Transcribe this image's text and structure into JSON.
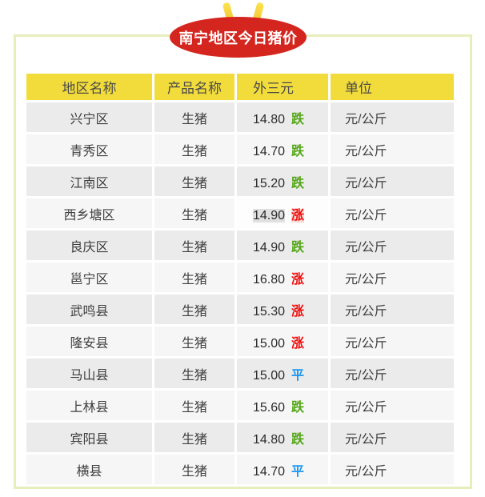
{
  "badge": {
    "title": "南宁地区今日猪价"
  },
  "table": {
    "headers": {
      "region": "地区名称",
      "product": "产品名称",
      "price": "外三元",
      "unit": "单位"
    },
    "rows": [
      {
        "region": "兴宁区",
        "product": "生猪",
        "price": "14.80",
        "trend": "跌",
        "trend_dir": "down",
        "unit": "元/公斤",
        "highlighted": false
      },
      {
        "region": "青秀区",
        "product": "生猪",
        "price": "14.70",
        "trend": "跌",
        "trend_dir": "down",
        "unit": "元/公斤",
        "highlighted": false
      },
      {
        "region": "江南区",
        "product": "生猪",
        "price": "15.20",
        "trend": "跌",
        "trend_dir": "down",
        "unit": "元/公斤",
        "highlighted": false
      },
      {
        "region": "西乡塘区",
        "product": "生猪",
        "price": "14.90",
        "trend": "涨",
        "trend_dir": "up",
        "unit": "元/公斤",
        "highlighted": true
      },
      {
        "region": "良庆区",
        "product": "生猪",
        "price": "14.90",
        "trend": "跌",
        "trend_dir": "down",
        "unit": "元/公斤",
        "highlighted": false
      },
      {
        "region": "邕宁区",
        "product": "生猪",
        "price": "16.80",
        "trend": "涨",
        "trend_dir": "up",
        "unit": "元/公斤",
        "highlighted": false
      },
      {
        "region": "武鸣县",
        "product": "生猪",
        "price": "15.30",
        "trend": "涨",
        "trend_dir": "up",
        "unit": "元/公斤",
        "highlighted": false
      },
      {
        "region": "隆安县",
        "product": "生猪",
        "price": "15.00",
        "trend": "涨",
        "trend_dir": "up",
        "unit": "元/公斤",
        "highlighted": false
      },
      {
        "region": "马山县",
        "product": "生猪",
        "price": "15.00",
        "trend": "平",
        "trend_dir": "flat",
        "unit": "元/公斤",
        "highlighted": false
      },
      {
        "region": "上林县",
        "product": "生猪",
        "price": "15.60",
        "trend": "跌",
        "trend_dir": "down",
        "unit": "元/公斤",
        "highlighted": false
      },
      {
        "region": "宾阳县",
        "product": "生猪",
        "price": "14.80",
        "trend": "跌",
        "trend_dir": "down",
        "unit": "元/公斤",
        "highlighted": false
      },
      {
        "region": "横县",
        "product": "生猪",
        "price": "14.70",
        "trend": "平",
        "trend_dir": "flat",
        "unit": "元/公斤",
        "highlighted": false
      }
    ]
  },
  "colors": {
    "badge_red": "#d4261e",
    "ear_yellow": "#f5cd3e",
    "header_yellow": "#f2dc3b",
    "frame_border": "#e8edbd",
    "trend_up_red": "#f20d0d",
    "trend_down_green": "#55a71a",
    "trend_flat_blue": "#1e97f3",
    "row_odd": "#ebebeb",
    "row_even": "#f6f6f6"
  }
}
